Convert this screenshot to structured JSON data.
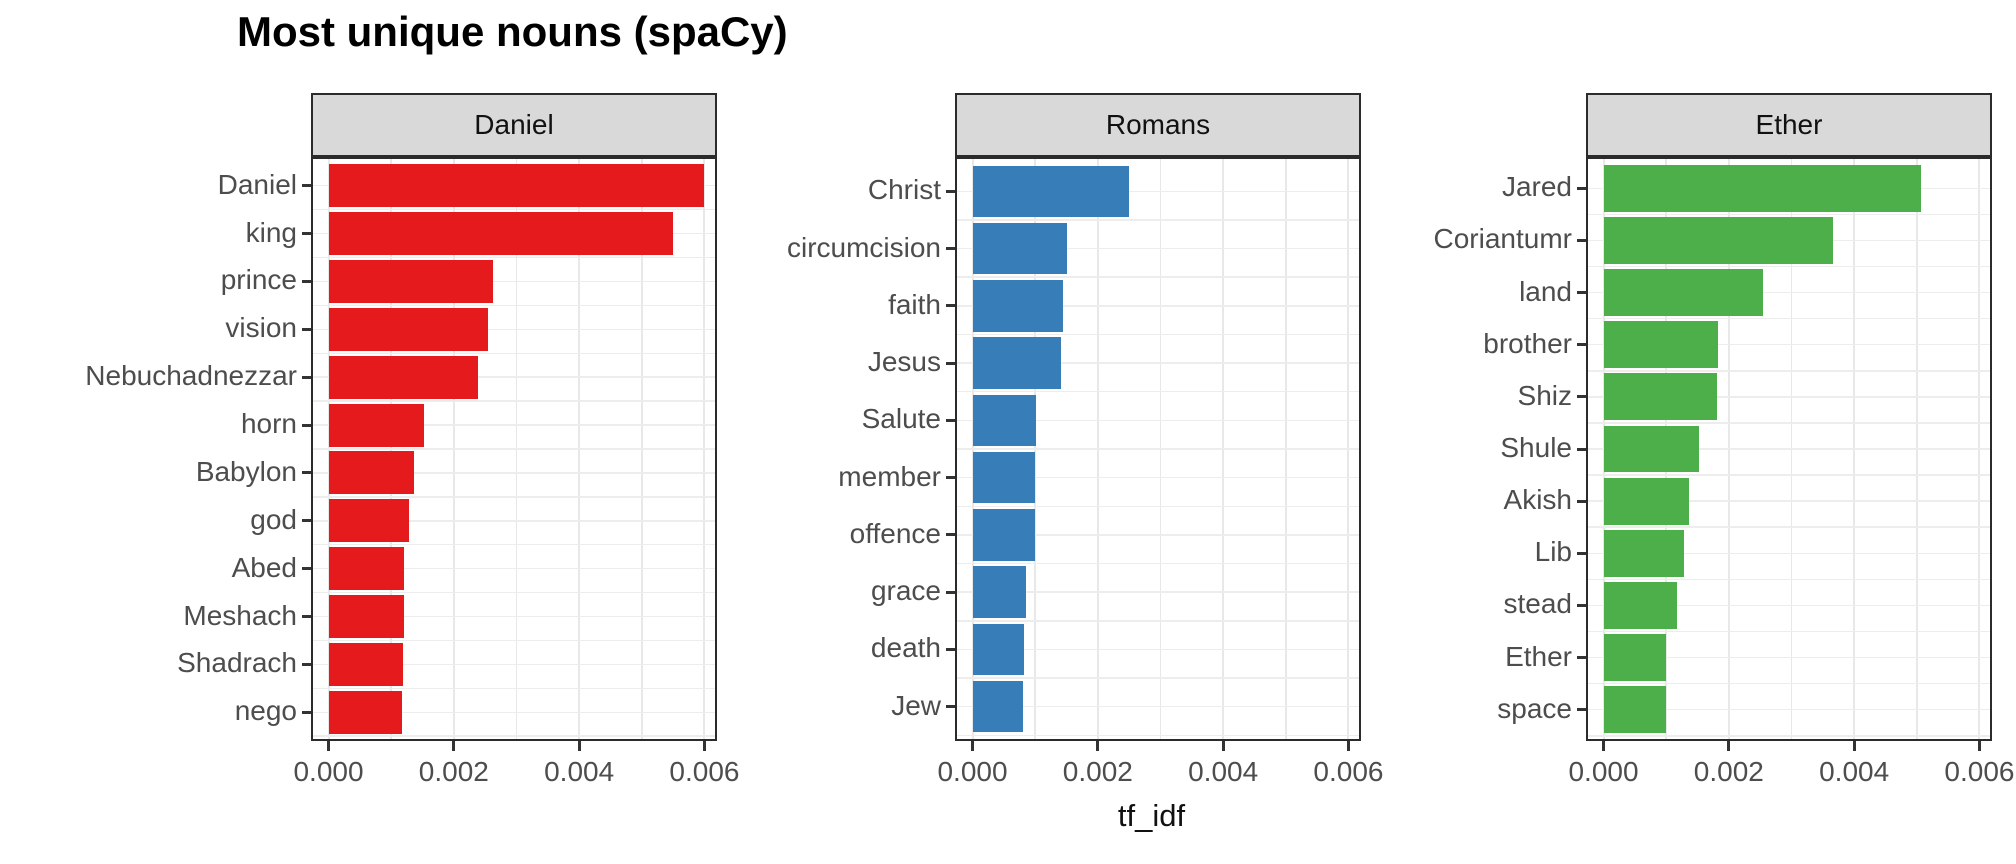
{
  "title": "Most unique nouns (spaCy)",
  "chart_data": {
    "type": "bar",
    "orientation": "horizontal",
    "title": "Most unique nouns (spaCy)",
    "xlabel": "tf_idf",
    "ylabel": "",
    "xlim": [
      -0.00028,
      0.0062
    ],
    "x_ticks": [
      {
        "value": 0.0,
        "label": "0.000"
      },
      {
        "value": 0.002,
        "label": "0.002"
      },
      {
        "value": 0.004,
        "label": "0.004"
      },
      {
        "value": 0.006,
        "label": "0.006"
      }
    ],
    "minor_grid_step": 0.001,
    "grid": "on",
    "legend_position": "none",
    "strip_background": "#d9d9d9",
    "facets": [
      {
        "label": "Daniel",
        "bar_color": "#e41a1c",
        "bars": [
          {
            "term": "Daniel",
            "value": 0.006
          },
          {
            "term": "king",
            "value": 0.00549
          },
          {
            "term": "prince",
            "value": 0.00262
          },
          {
            "term": "vision",
            "value": 0.00254
          },
          {
            "term": "Nebuchadnezzar",
            "value": 0.00238
          },
          {
            "term": "horn",
            "value": 0.00152
          },
          {
            "term": "Babylon",
            "value": 0.00136
          },
          {
            "term": "god",
            "value": 0.00128
          },
          {
            "term": "Abed",
            "value": 0.00121
          },
          {
            "term": "Meshach",
            "value": 0.0012
          },
          {
            "term": "Shadrach",
            "value": 0.00119
          },
          {
            "term": "nego",
            "value": 0.00118
          }
        ]
      },
      {
        "label": "Romans",
        "bar_color": "#377eb8",
        "bars": [
          {
            "term": "Christ",
            "value": 0.0025
          },
          {
            "term": "circumcision",
            "value": 0.0015
          },
          {
            "term": "faith",
            "value": 0.00145
          },
          {
            "term": "Jesus",
            "value": 0.00141
          },
          {
            "term": "Salute",
            "value": 0.00101
          },
          {
            "term": "member",
            "value": 0.001
          },
          {
            "term": "offence",
            "value": 0.00099
          },
          {
            "term": "grace",
            "value": 0.00085
          },
          {
            "term": "death",
            "value": 0.00082
          },
          {
            "term": "Jew",
            "value": 0.00081
          }
        ]
      },
      {
        "label": "Ether",
        "bar_color": "#4daf4a",
        "bars": [
          {
            "term": "Jared",
            "value": 0.00506
          },
          {
            "term": "Coriantumr",
            "value": 0.00366
          },
          {
            "term": "land",
            "value": 0.00255
          },
          {
            "term": "brother",
            "value": 0.00183
          },
          {
            "term": "Shiz",
            "value": 0.00181
          },
          {
            "term": "Shule",
            "value": 0.00152
          },
          {
            "term": "Akish",
            "value": 0.00136
          },
          {
            "term": "Lib",
            "value": 0.00128
          },
          {
            "term": "stead",
            "value": 0.00118
          },
          {
            "term": "Ether",
            "value": 0.001
          },
          {
            "term": "space",
            "value": 0.00099
          }
        ]
      }
    ]
  }
}
